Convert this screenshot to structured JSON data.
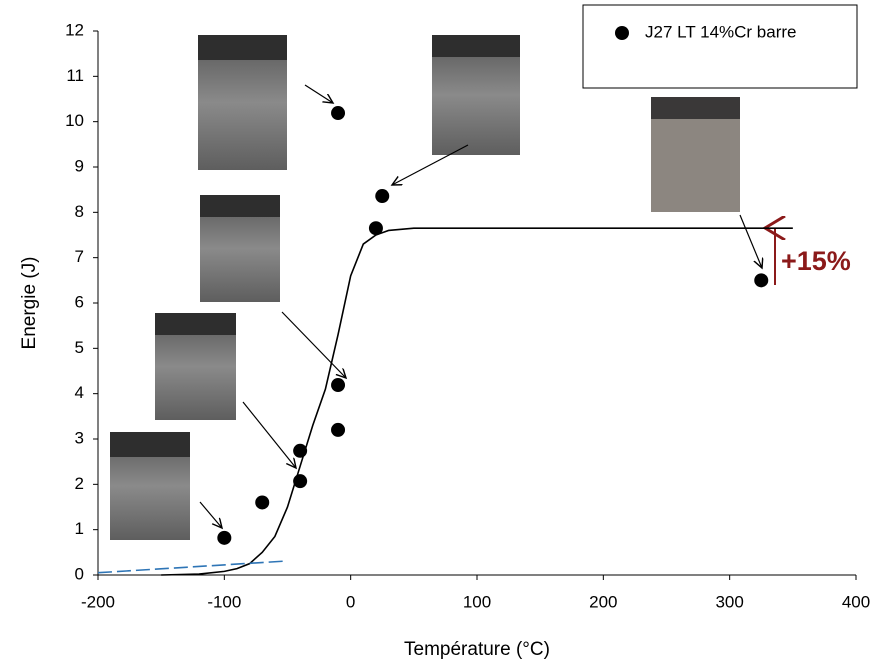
{
  "chart_data": {
    "type": "scatter",
    "xlabel": "Température (°C)",
    "ylabel": "Energie (J)",
    "xlim": [
      -200,
      400
    ],
    "xticks": [
      -200,
      -100,
      0,
      100,
      200,
      300,
      400
    ],
    "ylim": [
      0,
      12
    ],
    "yticks": [
      0,
      1,
      2,
      3,
      4,
      5,
      6,
      7,
      8,
      9,
      10,
      11,
      12
    ],
    "legend": "upper right",
    "series": [
      {
        "name": "J27 LT 14%Cr barre",
        "type": "scatter",
        "color": "#000000",
        "x": [
          -100,
          -70,
          -40,
          -40,
          -10,
          -10,
          -10,
          20,
          25,
          325
        ],
        "values": [
          0.82,
          1.6,
          2.07,
          2.74,
          3.2,
          4.19,
          10.19,
          7.65,
          8.36,
          6.5
        ]
      },
      {
        "type": "line",
        "color": "#000000",
        "dashed": false,
        "x": [
          -150,
          -120,
          -100,
          -90,
          -80,
          -70,
          -60,
          -50,
          -40,
          -30,
          -20,
          -10,
          0,
          10,
          20,
          30,
          50,
          100,
          350
        ],
        "values": [
          0,
          0.02,
          0.08,
          0.14,
          0.25,
          0.5,
          0.85,
          1.5,
          2.4,
          3.3,
          4.1,
          5.3,
          6.6,
          7.3,
          7.5,
          7.6,
          7.65,
          7.65,
          7.65
        ]
      },
      {
        "type": "line",
        "color": "#2e75b6",
        "dashed": true,
        "x": [
          -200,
          -50
        ],
        "values": [
          0.05,
          0.31
        ]
      }
    ],
    "annotation": "+15%"
  }
}
